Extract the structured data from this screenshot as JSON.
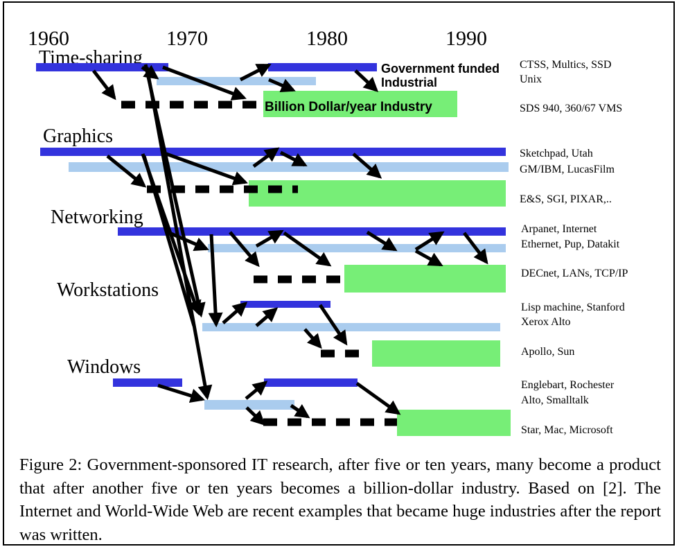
{
  "figure": {
    "years": [
      "1960",
      "1970",
      "1980",
      "1990"
    ],
    "categories": {
      "time_sharing": "Time-sharing",
      "graphics": "Graphics",
      "networking": "Networking",
      "workstations": "Workstations",
      "windows": "Windows"
    },
    "inline_labels": {
      "government_funded": "Government funded",
      "industrial": "Industrial",
      "billion_dollar": "Billion Dollar/year Industry"
    },
    "row_labels": {
      "ts_gov": "CTSS, Multics, SSD",
      "ts_ind": "Unix",
      "ts_bil": "SDS 940, 360/67 VMS",
      "gr_gov": "Sketchpad, Utah",
      "gr_ind": "GM/IBM, LucasFilm",
      "gr_bil": "E&S, SGI, PIXAR,..",
      "nw_gov": "Arpanet, Internet",
      "nw_ind": "Ethernet, Pup, Datakit",
      "nw_bil": "DECnet, LANs, TCP/IP",
      "ws_gov": "Lisp machine, Stanford",
      "ws_ind": "Xerox Alto",
      "ws_bil": "Apollo, Sun",
      "wn_gov": "Englebart, Rochester",
      "wn_ind": "Alto, Smalltalk",
      "wn_bil": "Star, Mac, Microsoft"
    },
    "colors": {
      "government": "#3333dd",
      "industrial": "#aaccee",
      "billion": "#77ee77"
    }
  },
  "caption": "Figure 2:  Government-sponsored IT research, after five or ten years, many become a product that after another five or ten years becomes a billion-dollar industry. Based on [2].  The Internet and World-Wide Web are recent examples that became huge industries after the report was written."
}
